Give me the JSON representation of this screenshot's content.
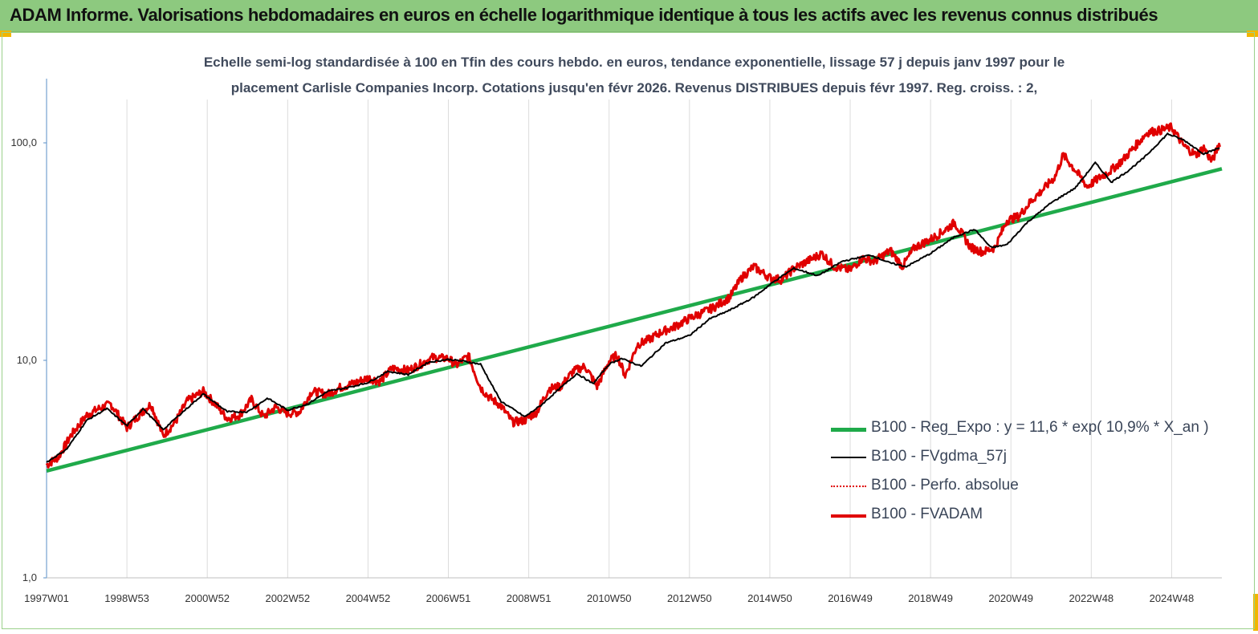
{
  "header": {
    "title": "ADAM Informe. Valorisations hebdomadaires en euros en échelle logarithmique identique à tous les actifs avec les revenus connus distribués"
  },
  "colors": {
    "banner": "#8dc97f",
    "regression": "#1faa4a",
    "smoothed": "#000000",
    "absolute": "#e00000",
    "fvadam": "#e00000"
  },
  "chart_data": {
    "type": "line",
    "title_line1": "Echelle semi-log standardisée à 100 en Tfin des cours hebdo. en euros, tendance exponentielle, lissage 57 j depuis janv 1997 pour le",
    "title_line2": "placement Carlisle Companies Incorp. Cotations jusqu'en févr 2026. Revenus DISTRIBUES depuis févr 1997. Reg. croiss. : 2,",
    "y_scale": "log",
    "ylim": [
      1,
      200
    ],
    "y_ticks": [
      1,
      10,
      100
    ],
    "y_tick_labels": [
      "1,0",
      "10,0",
      "100,0"
    ],
    "xlim": [
      1997.0,
      2026.25
    ],
    "x_ticks": [
      1997.0,
      1999.0,
      2001.0,
      2003.0,
      2005.0,
      2007.0,
      2009.0,
      2011.0,
      2013.0,
      2015.0,
      2017.0,
      2019.0,
      2021.0,
      2023.0,
      2025.0
    ],
    "x_tick_labels": [
      "1997W01",
      "1998W53",
      "2000W52",
      "2002W52",
      "2004W52",
      "2006W51",
      "2008W51",
      "2010W50",
      "2012W50",
      "2014W50",
      "2016W49",
      "2018W49",
      "2020W49",
      "2022W48",
      "2024W48"
    ],
    "grid": "vertical",
    "legend_position": "bottom-right",
    "series": [
      {
        "name": "B100 - Reg_Expo : y = 11,6 * exp( 10,9% *  X_an )",
        "style": "regression",
        "x": [
          1997.0,
          2026.25
        ],
        "values": [
          3.1,
          76
        ]
      },
      {
        "name": "B100 - FVgdma_57j",
        "style": "smoothed",
        "x": [
          1997.0,
          1997.5,
          1998.0,
          1998.5,
          1999.0,
          1999.4,
          1999.9,
          2000.3,
          2000.9,
          2001.5,
          2002.0,
          2002.5,
          2003.0,
          2003.5,
          2004.0,
          2004.5,
          2005.0,
          2005.5,
          2006.0,
          2006.5,
          2007.0,
          2007.4,
          2007.8,
          2008.3,
          2008.9,
          2009.3,
          2009.8,
          2010.2,
          2010.6,
          2011.0,
          2011.3,
          2011.8,
          2012.4,
          2013.0,
          2013.5,
          2014.0,
          2014.6,
          2015.1,
          2015.6,
          2016.2,
          2016.8,
          2017.5,
          2018.0,
          2018.4,
          2019.0,
          2019.6,
          2020.1,
          2020.5,
          2020.9,
          2021.4,
          2022.0,
          2022.6,
          2023.1,
          2023.5,
          2023.9,
          2024.3,
          2024.9,
          2025.3,
          2025.8,
          2026.2
        ],
        "values": [
          3.4,
          3.9,
          5.3,
          6.0,
          5.0,
          6.0,
          4.8,
          5.6,
          7.0,
          5.8,
          5.8,
          6.7,
          5.9,
          6.3,
          7.2,
          7.5,
          7.9,
          8.9,
          8.6,
          9.8,
          10.1,
          9.9,
          9.6,
          6.5,
          5.5,
          6.2,
          7.5,
          8.7,
          7.8,
          9.6,
          10.2,
          9.4,
          12.0,
          13.0,
          15.5,
          17.0,
          19.5,
          23.0,
          26.5,
          24.5,
          28.5,
          30.5,
          28.0,
          27.0,
          31.0,
          37.0,
          40.0,
          33.0,
          34.0,
          43.0,
          53.0,
          62.0,
          81.0,
          66.0,
          74.0,
          85.0,
          110.0,
          103.0,
          89.0,
          95.0
        ]
      },
      {
        "name": "B100 - Perfo. absolue",
        "style": "absolute",
        "x": [],
        "values": []
      },
      {
        "name": "B100 - FVADAM",
        "style": "fvadam",
        "x": [
          1997.0,
          1997.3,
          1997.6,
          1998.0,
          1998.3,
          1998.6,
          1999.0,
          1999.3,
          1999.6,
          1999.9,
          2000.2,
          2000.5,
          2000.9,
          2001.2,
          2001.5,
          2001.8,
          2002.1,
          2002.4,
          2002.7,
          2003.0,
          2003.3,
          2003.6,
          2004.0,
          2004.3,
          2004.6,
          2005.0,
          2005.3,
          2005.6,
          2006.0,
          2006.3,
          2006.6,
          2007.0,
          2007.2,
          2007.5,
          2007.8,
          2008.0,
          2008.3,
          2008.6,
          2008.9,
          2009.2,
          2009.5,
          2009.8,
          2010.1,
          2010.4,
          2010.7,
          2011.0,
          2011.2,
          2011.4,
          2011.7,
          2012.0,
          2012.3,
          2012.6,
          2013.0,
          2013.3,
          2013.6,
          2014.0,
          2014.3,
          2014.6,
          2015.0,
          2015.3,
          2015.6,
          2016.0,
          2016.3,
          2016.6,
          2017.0,
          2017.3,
          2017.6,
          2018.0,
          2018.3,
          2018.6,
          2019.0,
          2019.3,
          2019.6,
          2020.0,
          2020.3,
          2020.6,
          2020.9,
          2021.2,
          2021.5,
          2021.8,
          2022.1,
          2022.3,
          2022.6,
          2022.9,
          2023.2,
          2023.5,
          2023.8,
          2024.1,
          2024.4,
          2024.7,
          2025.0,
          2025.3,
          2025.6,
          2025.8,
          2026.0,
          2026.2
        ],
        "values": [
          3.3,
          3.6,
          4.5,
          5.6,
          6.0,
          6.3,
          4.9,
          5.6,
          6.3,
          4.5,
          5.2,
          6.5,
          7.2,
          6.3,
          5.4,
          5.6,
          6.6,
          5.5,
          6.1,
          5.7,
          5.8,
          7.2,
          7.0,
          7.5,
          7.8,
          8.3,
          8.0,
          9.2,
          9.0,
          9.6,
          10.3,
          10.2,
          9.5,
          10.5,
          7.5,
          6.8,
          6.2,
          5.2,
          5.3,
          5.8,
          7.4,
          7.6,
          8.9,
          9.4,
          7.6,
          9.9,
          10.6,
          8.5,
          11.8,
          12.5,
          13.5,
          14.2,
          15.6,
          16.5,
          17.5,
          19.5,
          24.0,
          27.0,
          24.0,
          23.5,
          26.5,
          29.0,
          31.0,
          27.0,
          26.0,
          29.5,
          28.5,
          32.0,
          27.0,
          33.0,
          36.0,
          39.0,
          43.0,
          33.0,
          31.5,
          33.0,
          44.0,
          46.0,
          54.0,
          61.0,
          70.0,
          88.0,
          75.0,
          63.0,
          69.0,
          75.0,
          84.0,
          97.0,
          112.0,
          114.0,
          118.0,
          97.0,
          88.0,
          95.0,
          82.0,
          100.0
        ]
      }
    ]
  }
}
